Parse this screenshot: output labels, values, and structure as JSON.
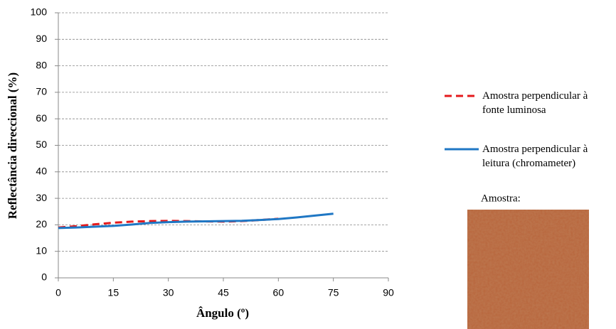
{
  "chart_data": {
    "type": "line",
    "xlabel": "Ângulo (º)",
    "ylabel": "Reflectância direccional (%)",
    "x": [
      0,
      5,
      10,
      15,
      20,
      25,
      30,
      35,
      40,
      45,
      50,
      55,
      60,
      65,
      70,
      75
    ],
    "series": [
      {
        "name": "Amostra perpendicular à fonte luminosa",
        "color": "#e41a1c",
        "dashed": true,
        "values": [
          19,
          19.5,
          20.2,
          20.8,
          21.2,
          21.4,
          21.5,
          21.4,
          21.3,
          21.2,
          21.4,
          21.8,
          22.3,
          null,
          null,
          null
        ]
      },
      {
        "name": "Amostra perpendicular à leitura (chromameter)",
        "color": "#1f77c4",
        "dashed": false,
        "values": [
          18.8,
          19,
          19.3,
          19.6,
          20.1,
          20.7,
          21,
          21.2,
          21.3,
          21.4,
          21.5,
          21.8,
          22.2,
          22.8,
          23.5,
          24.2
        ]
      }
    ],
    "xlim": [
      0,
      90
    ],
    "xticks": [
      0,
      15,
      30,
      45,
      60,
      75,
      90
    ],
    "ylim": [
      0,
      100
    ],
    "yticks": [
      0,
      10,
      20,
      30,
      40,
      50,
      60,
      70,
      80,
      90,
      100
    ],
    "grid": true,
    "sample_label": "Amostra:"
  }
}
